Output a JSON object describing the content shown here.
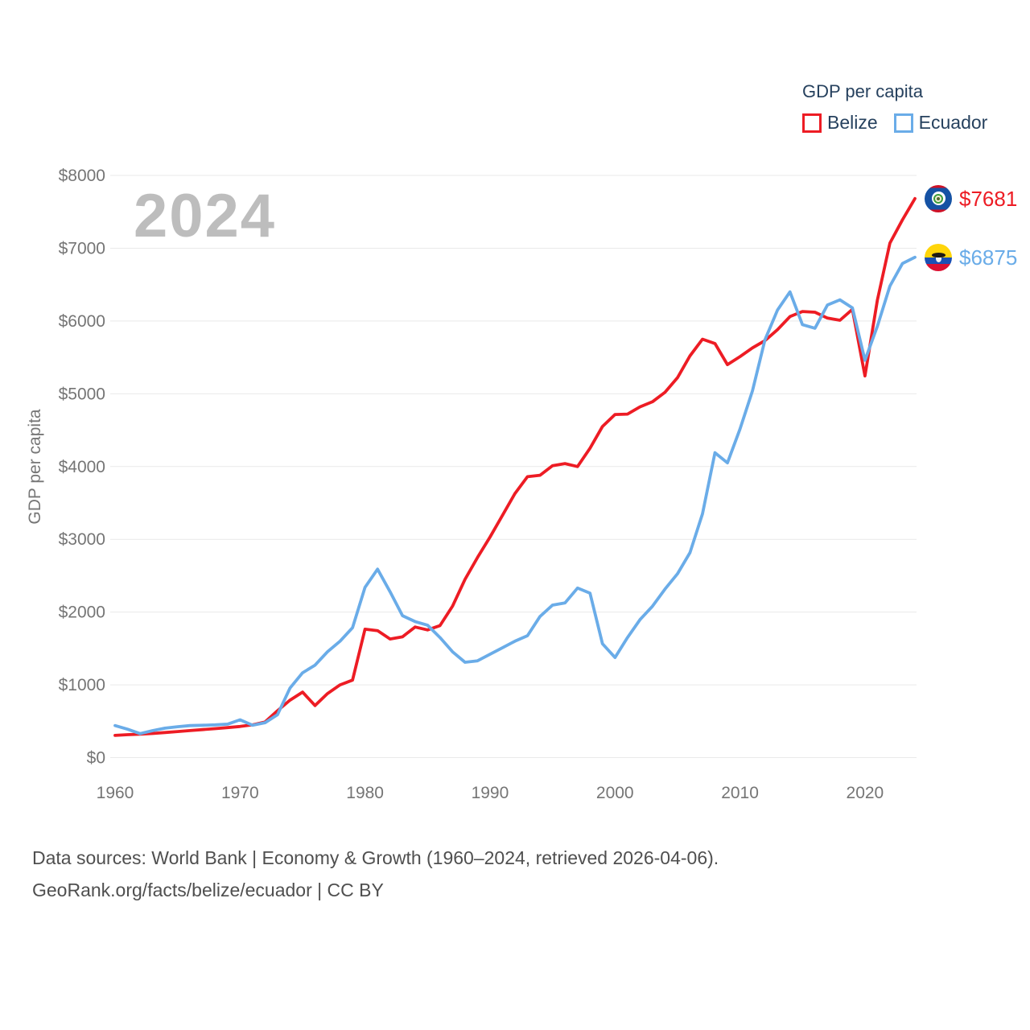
{
  "watermark": "2024",
  "legend": {
    "title": "GDP per capita",
    "items": [
      {
        "label": "Belize",
        "color": "#ed1c24"
      },
      {
        "label": "Ecuador",
        "color": "#6aace8"
      }
    ]
  },
  "footer": {
    "line1": "Data sources: World Bank | Economy & Growth (1960–2024, retrieved 2026-04-06).",
    "line2": "GeoRank.org/facts/belize/ecuador | CC BY"
  },
  "chart_data": {
    "type": "line",
    "title": "GDP per capita",
    "xlabel": "",
    "ylabel": "GDP per capita",
    "xlim": [
      1960,
      2024
    ],
    "ylim": [
      0,
      8000
    ],
    "grid": "horizontal",
    "legend_position": "top-right",
    "x_ticks": [
      1960,
      1970,
      1980,
      1990,
      2000,
      2010,
      2020
    ],
    "y_ticks": [
      {
        "value": 0,
        "label": "$0"
      },
      {
        "value": 1000,
        "label": "$1000"
      },
      {
        "value": 2000,
        "label": "$2000"
      },
      {
        "value": 3000,
        "label": "$3000"
      },
      {
        "value": 4000,
        "label": "$4000"
      },
      {
        "value": 5000,
        "label": "$5000"
      },
      {
        "value": 6000,
        "label": "$6000"
      },
      {
        "value": 7000,
        "label": "$7000"
      },
      {
        "value": 8000,
        "label": "$8000"
      }
    ],
    "x": [
      1960,
      1961,
      1962,
      1963,
      1964,
      1965,
      1966,
      1967,
      1968,
      1969,
      1970,
      1971,
      1972,
      1973,
      1974,
      1975,
      1976,
      1977,
      1978,
      1979,
      1980,
      1981,
      1982,
      1983,
      1984,
      1985,
      1986,
      1987,
      1988,
      1989,
      1990,
      1991,
      1992,
      1993,
      1994,
      1995,
      1996,
      1997,
      1998,
      1999,
      2000,
      2001,
      2002,
      2003,
      2004,
      2005,
      2006,
      2007,
      2008,
      2009,
      2010,
      2011,
      2012,
      2013,
      2014,
      2015,
      2016,
      2017,
      2018,
      2019,
      2020,
      2021,
      2022,
      2023,
      2024
    ],
    "series": [
      {
        "id": "belize",
        "name": "Belize",
        "color": "#ed1c24",
        "values": [
          305,
          315,
          322,
          332,
          345,
          358,
          372,
          385,
          398,
          412,
          428,
          450,
          490,
          645,
          790,
          900,
          715,
          880,
          1000,
          1065,
          1765,
          1745,
          1630,
          1660,
          1795,
          1755,
          1815,
          2080,
          2450,
          2750,
          3030,
          3330,
          3630,
          3860,
          3880,
          4010,
          4040,
          4000,
          4250,
          4550,
          4715,
          4720,
          4820,
          4890,
          5020,
          5220,
          5520,
          5750,
          5690,
          5400,
          5510,
          5630,
          5730,
          5880,
          6060,
          6130,
          6120,
          6040,
          6010,
          6160,
          5245,
          6290,
          7070,
          7390,
          7681
        ]
      },
      {
        "id": "ecuador",
        "name": "Ecuador",
        "color": "#6aace8",
        "values": [
          440,
          390,
          330,
          370,
          405,
          425,
          440,
          445,
          450,
          460,
          520,
          445,
          480,
          590,
          955,
          1165,
          1270,
          1455,
          1600,
          1785,
          2340,
          2590,
          2280,
          1950,
          1870,
          1820,
          1650,
          1455,
          1310,
          1330,
          1420,
          1510,
          1600,
          1675,
          1940,
          2095,
          2125,
          2330,
          2260,
          1565,
          1375,
          1650,
          1895,
          2080,
          2315,
          2525,
          2815,
          3350,
          4190,
          4050,
          4515,
          5040,
          5740,
          6150,
          6400,
          5950,
          5900,
          6220,
          6290,
          6180,
          5460,
          5930,
          6480,
          6790,
          6875
        ]
      }
    ],
    "end_labels": [
      {
        "series": "belize",
        "text": "$7681"
      },
      {
        "series": "ecuador",
        "text": "$6875"
      }
    ]
  }
}
